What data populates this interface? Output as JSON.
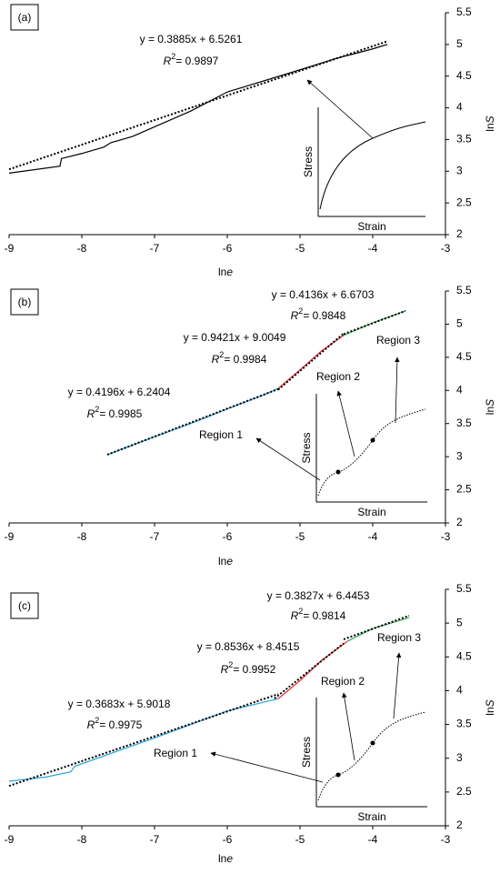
{
  "chart_data": [
    {
      "type": "line",
      "panel_label": "(a)",
      "xlabel": [
        "ln",
        "e"
      ],
      "ylabel": [
        "ln",
        "S"
      ],
      "xlim": [
        -9,
        -3
      ],
      "ylim": [
        2,
        5.5
      ],
      "xticks": [
        -9,
        -8,
        -7,
        -6,
        -5,
        -4,
        -3
      ],
      "yticks": [
        2,
        2.5,
        3,
        3.5,
        4,
        4.5,
        5,
        5.5
      ],
      "series": [
        {
          "color": "#000000",
          "style": "solid",
          "x": [
            -9,
            -8.3,
            -8.28,
            -8,
            -7.7,
            -7.6,
            -7.3,
            -7,
            -6.5,
            -6,
            -5.8,
            -5,
            -4.5,
            -4,
            -3.8
          ],
          "values": [
            2.97,
            3.08,
            3.2,
            3.28,
            3.38,
            3.45,
            3.55,
            3.7,
            3.95,
            4.25,
            4.32,
            4.6,
            4.78,
            4.93,
            5.0
          ]
        },
        {
          "color": "#000000",
          "style": "dotted",
          "x": [
            -9,
            -3.8
          ],
          "values": [
            3.03,
            5.05
          ]
        }
      ],
      "annotations": [
        {
          "equation": "y = 0.3885x + 6.5261",
          "r2": [
            "R",
            "2",
            "= 0.9897"
          ]
        }
      ],
      "inset": {
        "ylabel": "Stress",
        "xlabel": "Strain"
      }
    },
    {
      "type": "line",
      "panel_label": "(b)",
      "xlabel": [
        "ln",
        "e"
      ],
      "ylabel": [
        "ln",
        "S"
      ],
      "xlim": [
        -9,
        -3
      ],
      "ylim": [
        2,
        5.5
      ],
      "xticks": [
        -9,
        -8,
        -7,
        -6,
        -5,
        -4,
        -3
      ],
      "yticks": [
        2,
        2.5,
        3,
        3.5,
        4,
        4.5,
        5,
        5.5
      ],
      "series": [
        {
          "color": "#29a3dd",
          "style": "solid",
          "x": [
            -7.65,
            -7,
            -6.5,
            -6,
            -5.5,
            -5.3
          ],
          "values": [
            3.03,
            3.3,
            3.5,
            3.72,
            3.93,
            4.03
          ]
        },
        {
          "color": "#e8262b",
          "style": "solid",
          "x": [
            -5.3,
            -5,
            -4.7,
            -4.4
          ],
          "values": [
            4.03,
            4.31,
            4.6,
            4.83
          ]
        },
        {
          "color": "#3aaa5a",
          "style": "solid",
          "x": [
            -4.4,
            -4,
            -3.55
          ],
          "values": [
            4.83,
            5.02,
            5.2
          ]
        },
        {
          "color": "#000000",
          "style": "dotted",
          "x": [
            -7.65,
            -5.3
          ],
          "values": [
            3.03,
            4.02
          ]
        },
        {
          "color": "#000000",
          "style": "dotted",
          "x": [
            -5.3,
            -4.4
          ],
          "values": [
            4.01,
            4.86
          ]
        },
        {
          "color": "#000000",
          "style": "dotted",
          "x": [
            -4.4,
            -3.55
          ],
          "values": [
            4.85,
            5.2
          ]
        }
      ],
      "annotations": [
        {
          "equation": "y = 0.4196x + 6.2404",
          "r2": [
            "R",
            "2",
            "= 0.9985"
          ]
        },
        {
          "equation": "y = 0.9421x + 9.0049",
          "r2": [
            "R",
            "2",
            "= 0.9984"
          ]
        },
        {
          "equation": "y = 0.4136x + 6.6703",
          "r2": [
            "R",
            "2",
            "= 0.9848"
          ]
        }
      ],
      "inset": {
        "ylabel": "Stress",
        "xlabel": "Strain"
      },
      "regions": [
        "Region 1",
        "Region 2",
        "Region 3"
      ]
    },
    {
      "type": "line",
      "panel_label": "(c)",
      "xlabel": [
        "ln",
        "e"
      ],
      "ylabel": [
        "ln",
        "S"
      ],
      "xlim": [
        -9,
        -3
      ],
      "ylim": [
        2,
        5.5
      ],
      "xticks": [
        -9,
        -8,
        -7,
        -6,
        -5,
        -4,
        -3
      ],
      "yticks": [
        2,
        2.5,
        3,
        3.5,
        4,
        4.5,
        5,
        5.5
      ],
      "series": [
        {
          "color": "#29a3dd",
          "style": "solid",
          "x": [
            -9,
            -8.5,
            -8.15,
            -8.1,
            -7,
            -6,
            -5.3
          ],
          "values": [
            2.66,
            2.72,
            2.8,
            2.88,
            3.3,
            3.7,
            3.88
          ]
        },
        {
          "color": "#e8262b",
          "style": "solid",
          "x": [
            -5.3,
            -5,
            -4.7,
            -4.35
          ],
          "values": [
            3.88,
            4.15,
            4.45,
            4.73
          ]
        },
        {
          "color": "#3aaa5a",
          "style": "solid",
          "x": [
            -4.35,
            -4,
            -3.5
          ],
          "values": [
            4.73,
            4.92,
            5.08
          ]
        },
        {
          "color": "#000000",
          "style": "dotted",
          "x": [
            -9,
            -5.3
          ],
          "values": [
            2.59,
            3.95
          ]
        },
        {
          "color": "#000000",
          "style": "dotted",
          "x": [
            -5.35,
            -4.4
          ],
          "values": [
            3.885,
            4.7
          ]
        },
        {
          "color": "#000000",
          "style": "dotted",
          "x": [
            -4.4,
            -3.5
          ],
          "values": [
            4.76,
            5.11
          ]
        }
      ],
      "annotations": [
        {
          "equation": "y = 0.3683x + 5.9018",
          "r2": [
            "R",
            "2",
            "= 0.9975"
          ]
        },
        {
          "equation": "y = 0.8536x + 8.4515",
          "r2": [
            "R",
            "2",
            "= 0.9952"
          ]
        },
        {
          "equation": "y = 0.3827x + 6.4453",
          "r2": [
            "R",
            "2",
            "= 0.9814"
          ]
        }
      ],
      "inset": {
        "ylabel": "Stress",
        "xlabel": "Strain"
      },
      "regions": [
        "Region 1",
        "Region 2",
        "Region 3"
      ]
    }
  ]
}
